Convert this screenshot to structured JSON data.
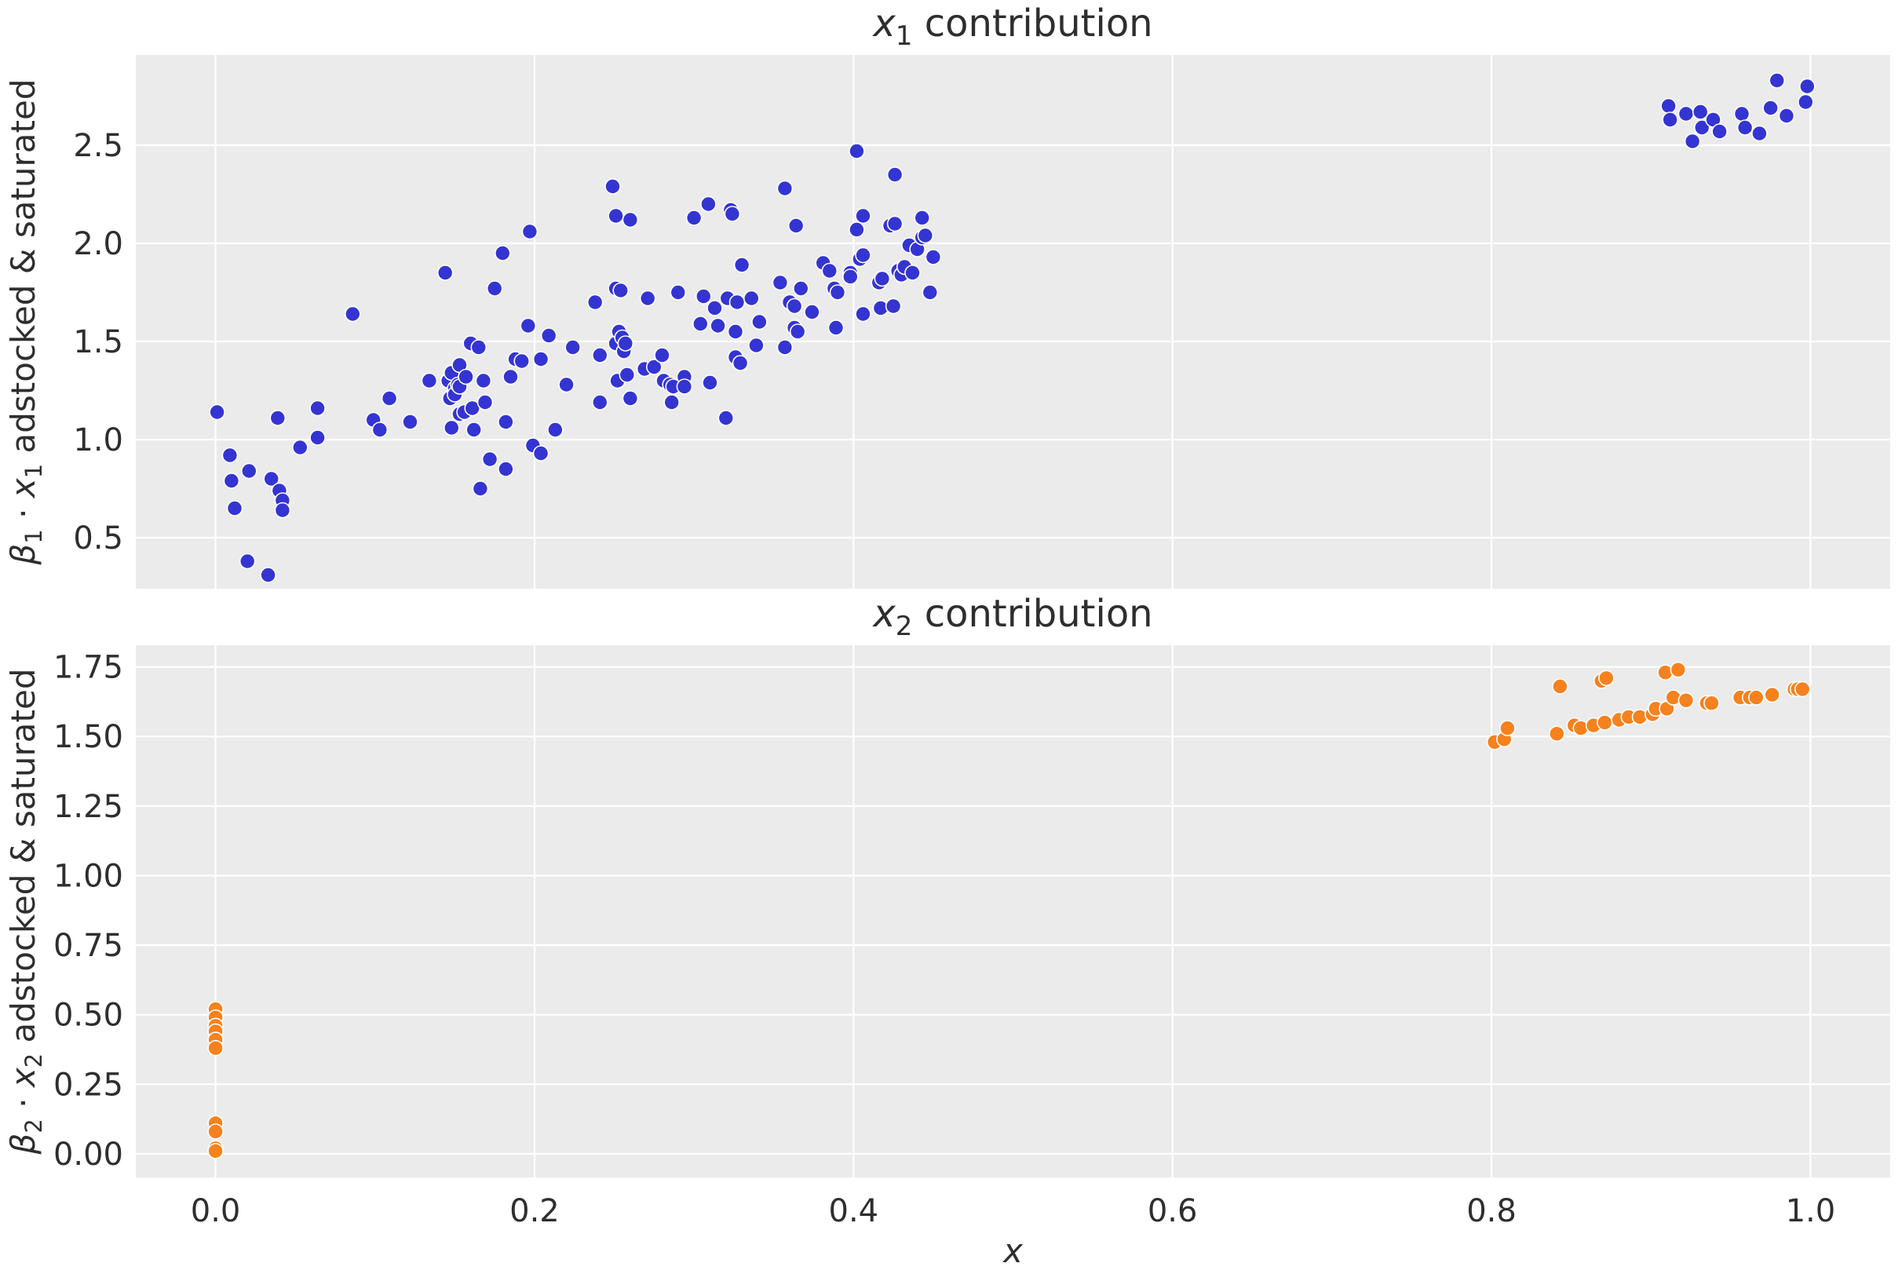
{
  "figure": {
    "background": "#ffffff",
    "panel_background": "#ebebeb",
    "grid_color": "#ffffff",
    "text_color": "#2e2e2e",
    "marker_edge_color": "#ffffff",
    "xlabel": "x",
    "x_tick_labels": [
      "0.0",
      "0.2",
      "0.4",
      "0.6",
      "0.8",
      "1.0"
    ],
    "x_tick_values": [
      0.0,
      0.2,
      0.4,
      0.6,
      0.8,
      1.0
    ],
    "xlim": [
      -0.05,
      1.05
    ]
  },
  "chart_data": [
    {
      "type": "scatter",
      "title_parts": [
        {
          "text": "x",
          "italic": true
        },
        {
          "text": "1",
          "sub": true
        },
        {
          "text": " contribution"
        }
      ],
      "title_plain": "x1 contribution",
      "ylabel_parts": [
        {
          "text": "β",
          "italic": true
        },
        {
          "text": "1",
          "sub": true
        },
        {
          "text": " · "
        },
        {
          "text": "x",
          "italic": true
        },
        {
          "text": "1",
          "sub": true
        },
        {
          "text": " adstocked & saturated"
        }
      ],
      "ylabel_plain": "β1 · x1 adstocked & saturated",
      "color": "#3434d2",
      "ylim": [
        0.24,
        2.96
      ],
      "y_tick_labels": [
        "0.5",
        "1.0",
        "1.5",
        "2.0",
        "2.5"
      ],
      "y_tick_values": [
        0.5,
        1.0,
        1.5,
        2.0,
        2.5
      ],
      "grid": true,
      "points": [
        [
          0.001,
          1.14
        ],
        [
          0.009,
          0.92
        ],
        [
          0.01,
          0.79
        ],
        [
          0.012,
          0.65
        ],
        [
          0.02,
          0.38
        ],
        [
          0.021,
          0.84
        ],
        [
          0.033,
          0.31
        ],
        [
          0.035,
          0.8
        ],
        [
          0.039,
          1.11
        ],
        [
          0.04,
          0.74
        ],
        [
          0.042,
          0.69
        ],
        [
          0.042,
          0.64
        ],
        [
          0.053,
          0.96
        ],
        [
          0.064,
          1.16
        ],
        [
          0.064,
          1.01
        ],
        [
          0.086,
          1.64
        ],
        [
          0.099,
          1.1
        ],
        [
          0.103,
          1.05
        ],
        [
          0.109,
          1.21
        ],
        [
          0.122,
          1.09
        ],
        [
          0.134,
          1.3
        ],
        [
          0.144,
          1.85
        ],
        [
          0.146,
          1.3
        ],
        [
          0.147,
          1.21
        ],
        [
          0.148,
          1.34
        ],
        [
          0.148,
          1.06
        ],
        [
          0.15,
          1.26
        ],
        [
          0.15,
          1.23
        ],
        [
          0.152,
          1.28
        ],
        [
          0.153,
          1.38
        ],
        [
          0.153,
          1.27
        ],
        [
          0.153,
          1.13
        ],
        [
          0.156,
          1.14
        ],
        [
          0.157,
          1.32
        ],
        [
          0.16,
          1.49
        ],
        [
          0.161,
          1.16
        ],
        [
          0.162,
          1.05
        ],
        [
          0.165,
          1.47
        ],
        [
          0.166,
          0.75
        ],
        [
          0.168,
          1.3
        ],
        [
          0.169,
          1.19
        ],
        [
          0.172,
          0.9
        ],
        [
          0.175,
          1.77
        ],
        [
          0.18,
          1.95
        ],
        [
          0.182,
          1.09
        ],
        [
          0.182,
          0.85
        ],
        [
          0.185,
          1.32
        ],
        [
          0.188,
          1.41
        ],
        [
          0.192,
          1.4
        ],
        [
          0.196,
          1.58
        ],
        [
          0.197,
          2.06
        ],
        [
          0.199,
          0.97
        ],
        [
          0.204,
          1.41
        ],
        [
          0.204,
          0.93
        ],
        [
          0.209,
          1.53
        ],
        [
          0.213,
          1.05
        ],
        [
          0.22,
          1.28
        ],
        [
          0.224,
          1.47
        ],
        [
          0.238,
          1.7
        ],
        [
          0.241,
          1.43
        ],
        [
          0.241,
          1.19
        ],
        [
          0.249,
          2.29
        ],
        [
          0.251,
          2.14
        ],
        [
          0.251,
          1.77
        ],
        [
          0.251,
          1.49
        ],
        [
          0.252,
          1.3
        ],
        [
          0.253,
          1.55
        ],
        [
          0.254,
          1.76
        ],
        [
          0.255,
          1.52
        ],
        [
          0.256,
          1.45
        ],
        [
          0.257,
          1.49
        ],
        [
          0.258,
          1.33
        ],
        [
          0.26,
          2.12
        ],
        [
          0.26,
          1.21
        ],
        [
          0.269,
          1.36
        ],
        [
          0.271,
          1.72
        ],
        [
          0.275,
          1.37
        ],
        [
          0.28,
          1.43
        ],
        [
          0.281,
          1.3
        ],
        [
          0.285,
          1.28
        ],
        [
          0.286,
          1.19
        ],
        [
          0.287,
          1.27
        ],
        [
          0.29,
          1.75
        ],
        [
          0.294,
          1.32
        ],
        [
          0.294,
          1.27
        ],
        [
          0.3,
          2.13
        ],
        [
          0.304,
          1.59
        ],
        [
          0.306,
          1.73
        ],
        [
          0.309,
          2.2
        ],
        [
          0.31,
          1.29
        ],
        [
          0.313,
          1.67
        ],
        [
          0.315,
          1.58
        ],
        [
          0.32,
          1.11
        ],
        [
          0.321,
          1.72
        ],
        [
          0.323,
          2.17
        ],
        [
          0.324,
          2.15
        ],
        [
          0.326,
          1.55
        ],
        [
          0.326,
          1.42
        ],
        [
          0.327,
          1.7
        ],
        [
          0.329,
          1.39
        ],
        [
          0.33,
          1.89
        ],
        [
          0.336,
          1.72
        ],
        [
          0.339,
          1.48
        ],
        [
          0.341,
          1.6
        ],
        [
          0.354,
          1.8
        ],
        [
          0.357,
          2.28
        ],
        [
          0.357,
          1.47
        ],
        [
          0.36,
          1.7
        ],
        [
          0.363,
          1.68
        ],
        [
          0.363,
          1.57
        ],
        [
          0.364,
          2.09
        ],
        [
          0.365,
          1.55
        ],
        [
          0.367,
          1.77
        ],
        [
          0.374,
          1.65
        ],
        [
          0.381,
          1.9
        ],
        [
          0.385,
          1.86
        ],
        [
          0.388,
          1.77
        ],
        [
          0.389,
          1.57
        ],
        [
          0.39,
          1.75
        ],
        [
          0.398,
          1.85
        ],
        [
          0.398,
          1.83
        ],
        [
          0.402,
          2.47
        ],
        [
          0.402,
          2.07
        ],
        [
          0.404,
          1.92
        ],
        [
          0.406,
          2.14
        ],
        [
          0.406,
          1.94
        ],
        [
          0.406,
          1.64
        ],
        [
          0.416,
          1.8
        ],
        [
          0.417,
          1.67
        ],
        [
          0.418,
          1.82
        ],
        [
          0.423,
          2.09
        ],
        [
          0.425,
          1.68
        ],
        [
          0.426,
          2.35
        ],
        [
          0.426,
          2.1
        ],
        [
          0.428,
          1.86
        ],
        [
          0.43,
          1.84
        ],
        [
          0.432,
          1.88
        ],
        [
          0.435,
          1.99
        ],
        [
          0.437,
          1.85
        ],
        [
          0.44,
          1.97
        ],
        [
          0.443,
          2.13
        ],
        [
          0.443,
          2.03
        ],
        [
          0.445,
          2.04
        ],
        [
          0.448,
          1.75
        ],
        [
          0.45,
          1.93
        ],
        [
          0.911,
          2.7
        ],
        [
          0.912,
          2.63
        ],
        [
          0.922,
          2.66
        ],
        [
          0.926,
          2.52
        ],
        [
          0.931,
          2.67
        ],
        [
          0.932,
          2.59
        ],
        [
          0.939,
          2.63
        ],
        [
          0.943,
          2.57
        ],
        [
          0.957,
          2.66
        ],
        [
          0.959,
          2.59
        ],
        [
          0.968,
          2.56
        ],
        [
          0.975,
          2.69
        ],
        [
          0.979,
          2.83
        ],
        [
          0.985,
          2.65
        ],
        [
          0.997,
          2.72
        ],
        [
          0.998,
          2.8
        ]
      ]
    },
    {
      "type": "scatter",
      "title_parts": [
        {
          "text": "x",
          "italic": true
        },
        {
          "text": "2",
          "sub": true
        },
        {
          "text": " contribution"
        }
      ],
      "title_plain": "x2 contribution",
      "ylabel_parts": [
        {
          "text": "β",
          "italic": true
        },
        {
          "text": "2",
          "sub": true
        },
        {
          "text": " · "
        },
        {
          "text": "x",
          "italic": true
        },
        {
          "text": "2",
          "sub": true
        },
        {
          "text": " adstocked & saturated"
        }
      ],
      "ylabel_plain": "β2 · x2 adstocked & saturated",
      "color": "#f5821e",
      "ylim": [
        -0.085,
        1.828
      ],
      "y_tick_labels": [
        "0.00",
        "0.25",
        "0.50",
        "0.75",
        "1.00",
        "1.25",
        "1.50",
        "1.75"
      ],
      "y_tick_values": [
        0.0,
        0.25,
        0.5,
        0.75,
        1.0,
        1.25,
        1.5,
        1.75
      ],
      "grid": true,
      "points": [
        [
          0.0,
          0.52
        ],
        [
          0.0,
          0.49
        ],
        [
          0.0,
          0.46
        ],
        [
          0.0,
          0.44
        ],
        [
          0.0,
          0.41
        ],
        [
          0.0,
          0.38
        ],
        [
          0.0,
          0.11
        ],
        [
          0.0,
          0.08
        ],
        [
          0.0,
          0.02
        ],
        [
          0.0,
          0.01
        ],
        [
          0.802,
          1.48
        ],
        [
          0.808,
          1.49
        ],
        [
          0.81,
          1.53
        ],
        [
          0.841,
          1.51
        ],
        [
          0.843,
          1.68
        ],
        [
          0.852,
          1.54
        ],
        [
          0.856,
          1.53
        ],
        [
          0.864,
          1.54
        ],
        [
          0.869,
          1.7
        ],
        [
          0.871,
          1.55
        ],
        [
          0.872,
          1.71
        ],
        [
          0.88,
          1.56
        ],
        [
          0.886,
          1.57
        ],
        [
          0.893,
          1.57
        ],
        [
          0.901,
          1.58
        ],
        [
          0.903,
          1.6
        ],
        [
          0.909,
          1.73
        ],
        [
          0.91,
          1.6
        ],
        [
          0.914,
          1.64
        ],
        [
          0.917,
          1.74
        ],
        [
          0.922,
          1.63
        ],
        [
          0.935,
          1.62
        ],
        [
          0.938,
          1.62
        ],
        [
          0.956,
          1.64
        ],
        [
          0.962,
          1.64
        ],
        [
          0.966,
          1.64
        ],
        [
          0.976,
          1.65
        ],
        [
          0.99,
          1.67
        ],
        [
          0.992,
          1.67
        ],
        [
          0.995,
          1.67
        ]
      ]
    }
  ]
}
